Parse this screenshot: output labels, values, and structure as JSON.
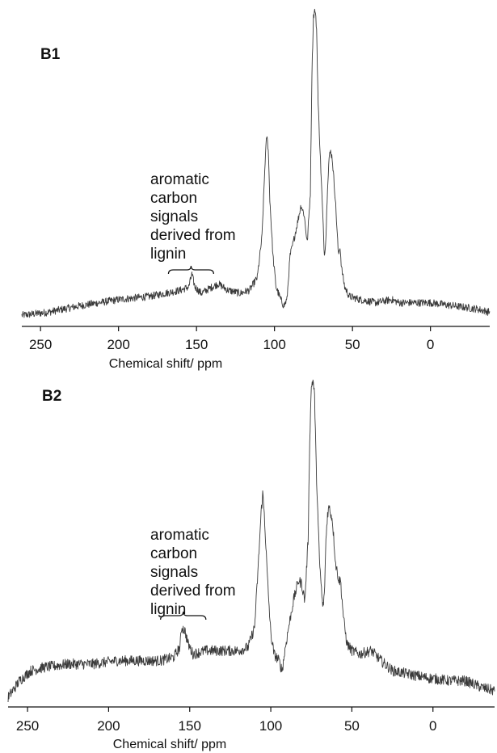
{
  "chart_data": [
    {
      "type": "line",
      "panel_label": "B1",
      "xlabel": "Chemical shift/ ppm",
      "ylabel": "",
      "x_reversed": true,
      "xlim": [
        262,
        -38
      ],
      "xticks": [
        250,
        200,
        150,
        100,
        50,
        0
      ],
      "annotation": {
        "lines": [
          "aromatic",
          "carbon",
          "signals",
          "derived from",
          "lignin"
        ],
        "range_ppm": [
          168,
          139
        ]
      },
      "series": [
        {
          "points": [
            [
              262,
              0.03
            ],
            [
              245,
              0.04
            ],
            [
              225,
              0.06
            ],
            [
              200,
              0.08
            ],
            [
              180,
              0.09
            ],
            [
              170,
              0.1
            ],
            [
              160,
              0.11
            ],
            [
              155,
              0.12
            ],
            [
              153,
              0.16
            ],
            [
              151,
              0.12
            ],
            [
              147,
              0.1
            ],
            [
              140,
              0.12
            ],
            [
              136,
              0.13
            ],
            [
              130,
              0.11
            ],
            [
              122,
              0.1
            ],
            [
              116,
              0.11
            ],
            [
              111,
              0.15
            ],
            [
              108,
              0.28
            ],
            [
              106,
              0.52
            ],
            [
              105,
              0.6
            ],
            [
              104,
              0.56
            ],
            [
              103,
              0.4
            ],
            [
              101,
              0.22
            ],
            [
              99,
              0.12
            ],
            [
              96,
              0.08
            ],
            [
              94,
              0.06
            ],
            [
              92,
              0.08
            ],
            [
              90,
              0.22
            ],
            [
              88,
              0.26
            ],
            [
              85,
              0.33
            ],
            [
              83,
              0.38
            ],
            [
              81,
              0.35
            ],
            [
              79,
              0.26
            ],
            [
              77,
              0.42
            ],
            [
              76,
              0.8
            ],
            [
              75,
              0.98
            ],
            [
              74,
              1.0
            ],
            [
              73,
              0.94
            ],
            [
              72,
              0.7
            ],
            [
              70,
              0.46
            ],
            [
              68,
              0.22
            ],
            [
              67,
              0.28
            ],
            [
              66,
              0.44
            ],
            [
              65,
              0.53
            ],
            [
              64,
              0.55
            ],
            [
              63,
              0.53
            ],
            [
              61,
              0.4
            ],
            [
              59,
              0.22
            ],
            [
              58,
              0.25
            ],
            [
              57,
              0.18
            ],
            [
              55,
              0.12
            ],
            [
              52,
              0.09
            ],
            [
              45,
              0.08
            ],
            [
              35,
              0.07
            ],
            [
              25,
              0.08
            ],
            [
              20,
              0.07
            ],
            [
              10,
              0.07
            ],
            [
              0,
              0.07
            ],
            [
              -15,
              0.06
            ],
            [
              -30,
              0.05
            ],
            [
              -38,
              0.04
            ]
          ]
        }
      ]
    },
    {
      "type": "line",
      "panel_label": "B2",
      "xlabel": "Chemical shift/ ppm",
      "ylabel": "",
      "x_reversed": true,
      "xlim": [
        262,
        -38
      ],
      "xticks": [
        250,
        200,
        150,
        100,
        50,
        0
      ],
      "annotation": {
        "lines": [
          "aromatic",
          "carbon",
          "signals",
          "derived from",
          "lignin"
        ],
        "range_ppm": [
          168,
          140
        ]
      },
      "series": [
        {
          "points": [
            [
              262,
              0.05
            ],
            [
              255,
              0.1
            ],
            [
              248,
              0.13
            ],
            [
              240,
              0.14
            ],
            [
              225,
              0.15
            ],
            [
              210,
              0.15
            ],
            [
              195,
              0.16
            ],
            [
              180,
              0.16
            ],
            [
              168,
              0.16
            ],
            [
              160,
              0.17
            ],
            [
              156,
              0.2
            ],
            [
              155,
              0.26
            ],
            [
              153,
              0.25
            ],
            [
              151,
              0.21
            ],
            [
              148,
              0.18
            ],
            [
              140,
              0.19
            ],
            [
              130,
              0.19
            ],
            [
              120,
              0.19
            ],
            [
              114,
              0.2
            ],
            [
              110,
              0.26
            ],
            [
              108,
              0.42
            ],
            [
              106,
              0.6
            ],
            [
              105,
              0.66
            ],
            [
              104,
              0.6
            ],
            [
              102,
              0.4
            ],
            [
              100,
              0.24
            ],
            [
              98,
              0.18
            ],
            [
              95,
              0.16
            ],
            [
              93,
              0.13
            ],
            [
              91,
              0.2
            ],
            [
              89,
              0.26
            ],
            [
              86,
              0.34
            ],
            [
              83,
              0.4
            ],
            [
              81,
              0.39
            ],
            [
              79,
              0.34
            ],
            [
              77,
              0.52
            ],
            [
              76,
              0.82
            ],
            [
              75,
              0.98
            ],
            [
              74,
              1.0
            ],
            [
              73,
              0.95
            ],
            [
              72,
              0.74
            ],
            [
              70,
              0.46
            ],
            [
              68,
              0.32
            ],
            [
              67,
              0.35
            ],
            [
              66,
              0.52
            ],
            [
              65,
              0.6
            ],
            [
              64,
              0.62
            ],
            [
              62,
              0.58
            ],
            [
              60,
              0.45
            ],
            [
              58,
              0.4
            ],
            [
              57,
              0.4
            ],
            [
              55,
              0.28
            ],
            [
              53,
              0.21
            ],
            [
              50,
              0.19
            ],
            [
              45,
              0.18
            ],
            [
              38,
              0.19
            ],
            [
              32,
              0.16
            ],
            [
              25,
              0.13
            ],
            [
              15,
              0.12
            ],
            [
              5,
              0.11
            ],
            [
              -10,
              0.1
            ],
            [
              -20,
              0.1
            ],
            [
              -30,
              0.08
            ],
            [
              -38,
              0.07
            ]
          ]
        }
      ]
    }
  ]
}
